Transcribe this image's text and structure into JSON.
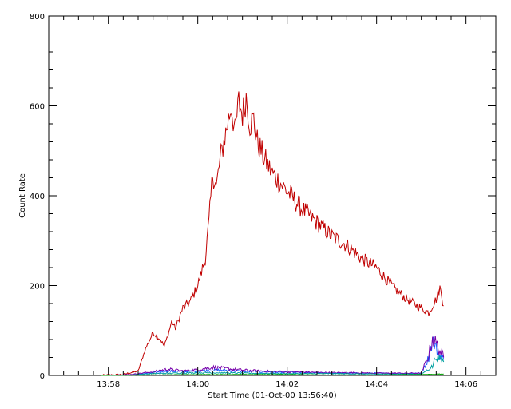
{
  "chart_data": {
    "type": "line",
    "title": "",
    "xlabel": "Start Time (01-Oct-00 13:56:40)",
    "ylabel": "Count Rate",
    "xlim": [
      "13:56:40",
      "14:06:40"
    ],
    "ylim": [
      0,
      800
    ],
    "x_ticks": [
      "13:58",
      "14:00",
      "14:02",
      "14:04",
      "14:06"
    ],
    "y_ticks": [
      "0",
      "200",
      "400",
      "600",
      "800"
    ],
    "grid": false,
    "series": [
      {
        "color": "#c00000",
        "x": [
          "13:57:50",
          "13:58:20",
          "13:58:40",
          "13:58:50",
          "13:59:00",
          "13:59:10",
          "13:59:15",
          "13:59:20",
          "13:59:25",
          "13:59:30",
          "13:59:40",
          "13:59:50",
          "14:00:00",
          "14:00:10",
          "14:00:15",
          "14:00:20",
          "14:00:25",
          "14:00:30",
          "14:00:35",
          "14:00:40",
          "14:00:45",
          "14:00:50",
          "14:00:55",
          "14:01:00",
          "14:01:05",
          "14:01:10",
          "14:01:15",
          "14:01:20",
          "14:01:30",
          "14:01:40",
          "14:01:50",
          "14:02:00",
          "14:02:20",
          "14:02:40",
          "14:03:00",
          "14:03:20",
          "14:03:40",
          "14:04:00",
          "14:04:20",
          "14:04:40",
          "14:05:00",
          "14:05:10",
          "14:05:20",
          "14:05:25",
          "14:05:30"
        ],
        "values": [
          0,
          2,
          10,
          60,
          95,
          80,
          65,
          90,
          120,
          105,
          150,
          165,
          200,
          260,
          340,
          450,
          420,
          480,
          520,
          560,
          600,
          540,
          610,
          580,
          620,
          560,
          570,
          520,
          480,
          450,
          430,
          410,
          370,
          340,
          310,
          290,
          260,
          240,
          200,
          170,
          150,
          140,
          170,
          195,
          155
        ]
      },
      {
        "color": "#1a5cff",
        "x": [
          "13:57:50",
          "13:58:30",
          "13:59:00",
          "13:59:20",
          "13:59:40",
          "14:00:00",
          "14:00:30",
          "14:01:00",
          "14:01:30",
          "14:02:00",
          "14:02:30",
          "14:03:00",
          "14:03:30",
          "14:04:00",
          "14:04:30",
          "14:05:00",
          "14:05:10",
          "14:05:15",
          "14:05:20",
          "14:05:25",
          "14:05:30"
        ],
        "values": [
          0,
          1,
          6,
          10,
          8,
          10,
          12,
          9,
          8,
          7,
          6,
          5,
          5,
          5,
          4,
          5,
          40,
          80,
          60,
          45,
          35
        ]
      },
      {
        "color": "#7700aa",
        "x": [
          "13:57:50",
          "13:58:30",
          "13:59:00",
          "13:59:20",
          "13:59:40",
          "14:00:00",
          "14:00:20",
          "14:00:40",
          "14:01:00",
          "14:01:20",
          "14:01:40",
          "14:02:00",
          "14:02:30",
          "14:03:00",
          "14:03:30",
          "14:04:00",
          "14:04:30",
          "14:05:00",
          "14:05:10",
          "14:05:15",
          "14:05:20",
          "14:05:25",
          "14:05:30"
        ],
        "values": [
          0,
          2,
          8,
          14,
          10,
          13,
          18,
          15,
          12,
          10,
          9,
          8,
          7,
          6,
          6,
          5,
          5,
          5,
          45,
          85,
          70,
          55,
          40
        ]
      },
      {
        "color": "#00a0a0",
        "x": [
          "13:57:50",
          "13:58:30",
          "13:59:00",
          "13:59:30",
          "14:00:00",
          "14:00:30",
          "14:01:00",
          "14:02:00",
          "14:03:00",
          "14:04:00",
          "14:05:00",
          "14:05:15",
          "14:05:20",
          "14:05:25",
          "14:05:30"
        ],
        "values": [
          0,
          1,
          4,
          5,
          6,
          6,
          5,
          4,
          4,
          3,
          3,
          20,
          45,
          35,
          30
        ]
      },
      {
        "color": "#00a000",
        "x": [
          "13:57:50",
          "13:59:00",
          "14:00:00",
          "14:01:00",
          "14:02:00",
          "14:03:00",
          "14:04:00",
          "14:05:00",
          "14:05:30"
        ],
        "values": [
          0,
          1,
          2,
          2,
          2,
          1,
          1,
          2,
          3
        ]
      }
    ]
  }
}
